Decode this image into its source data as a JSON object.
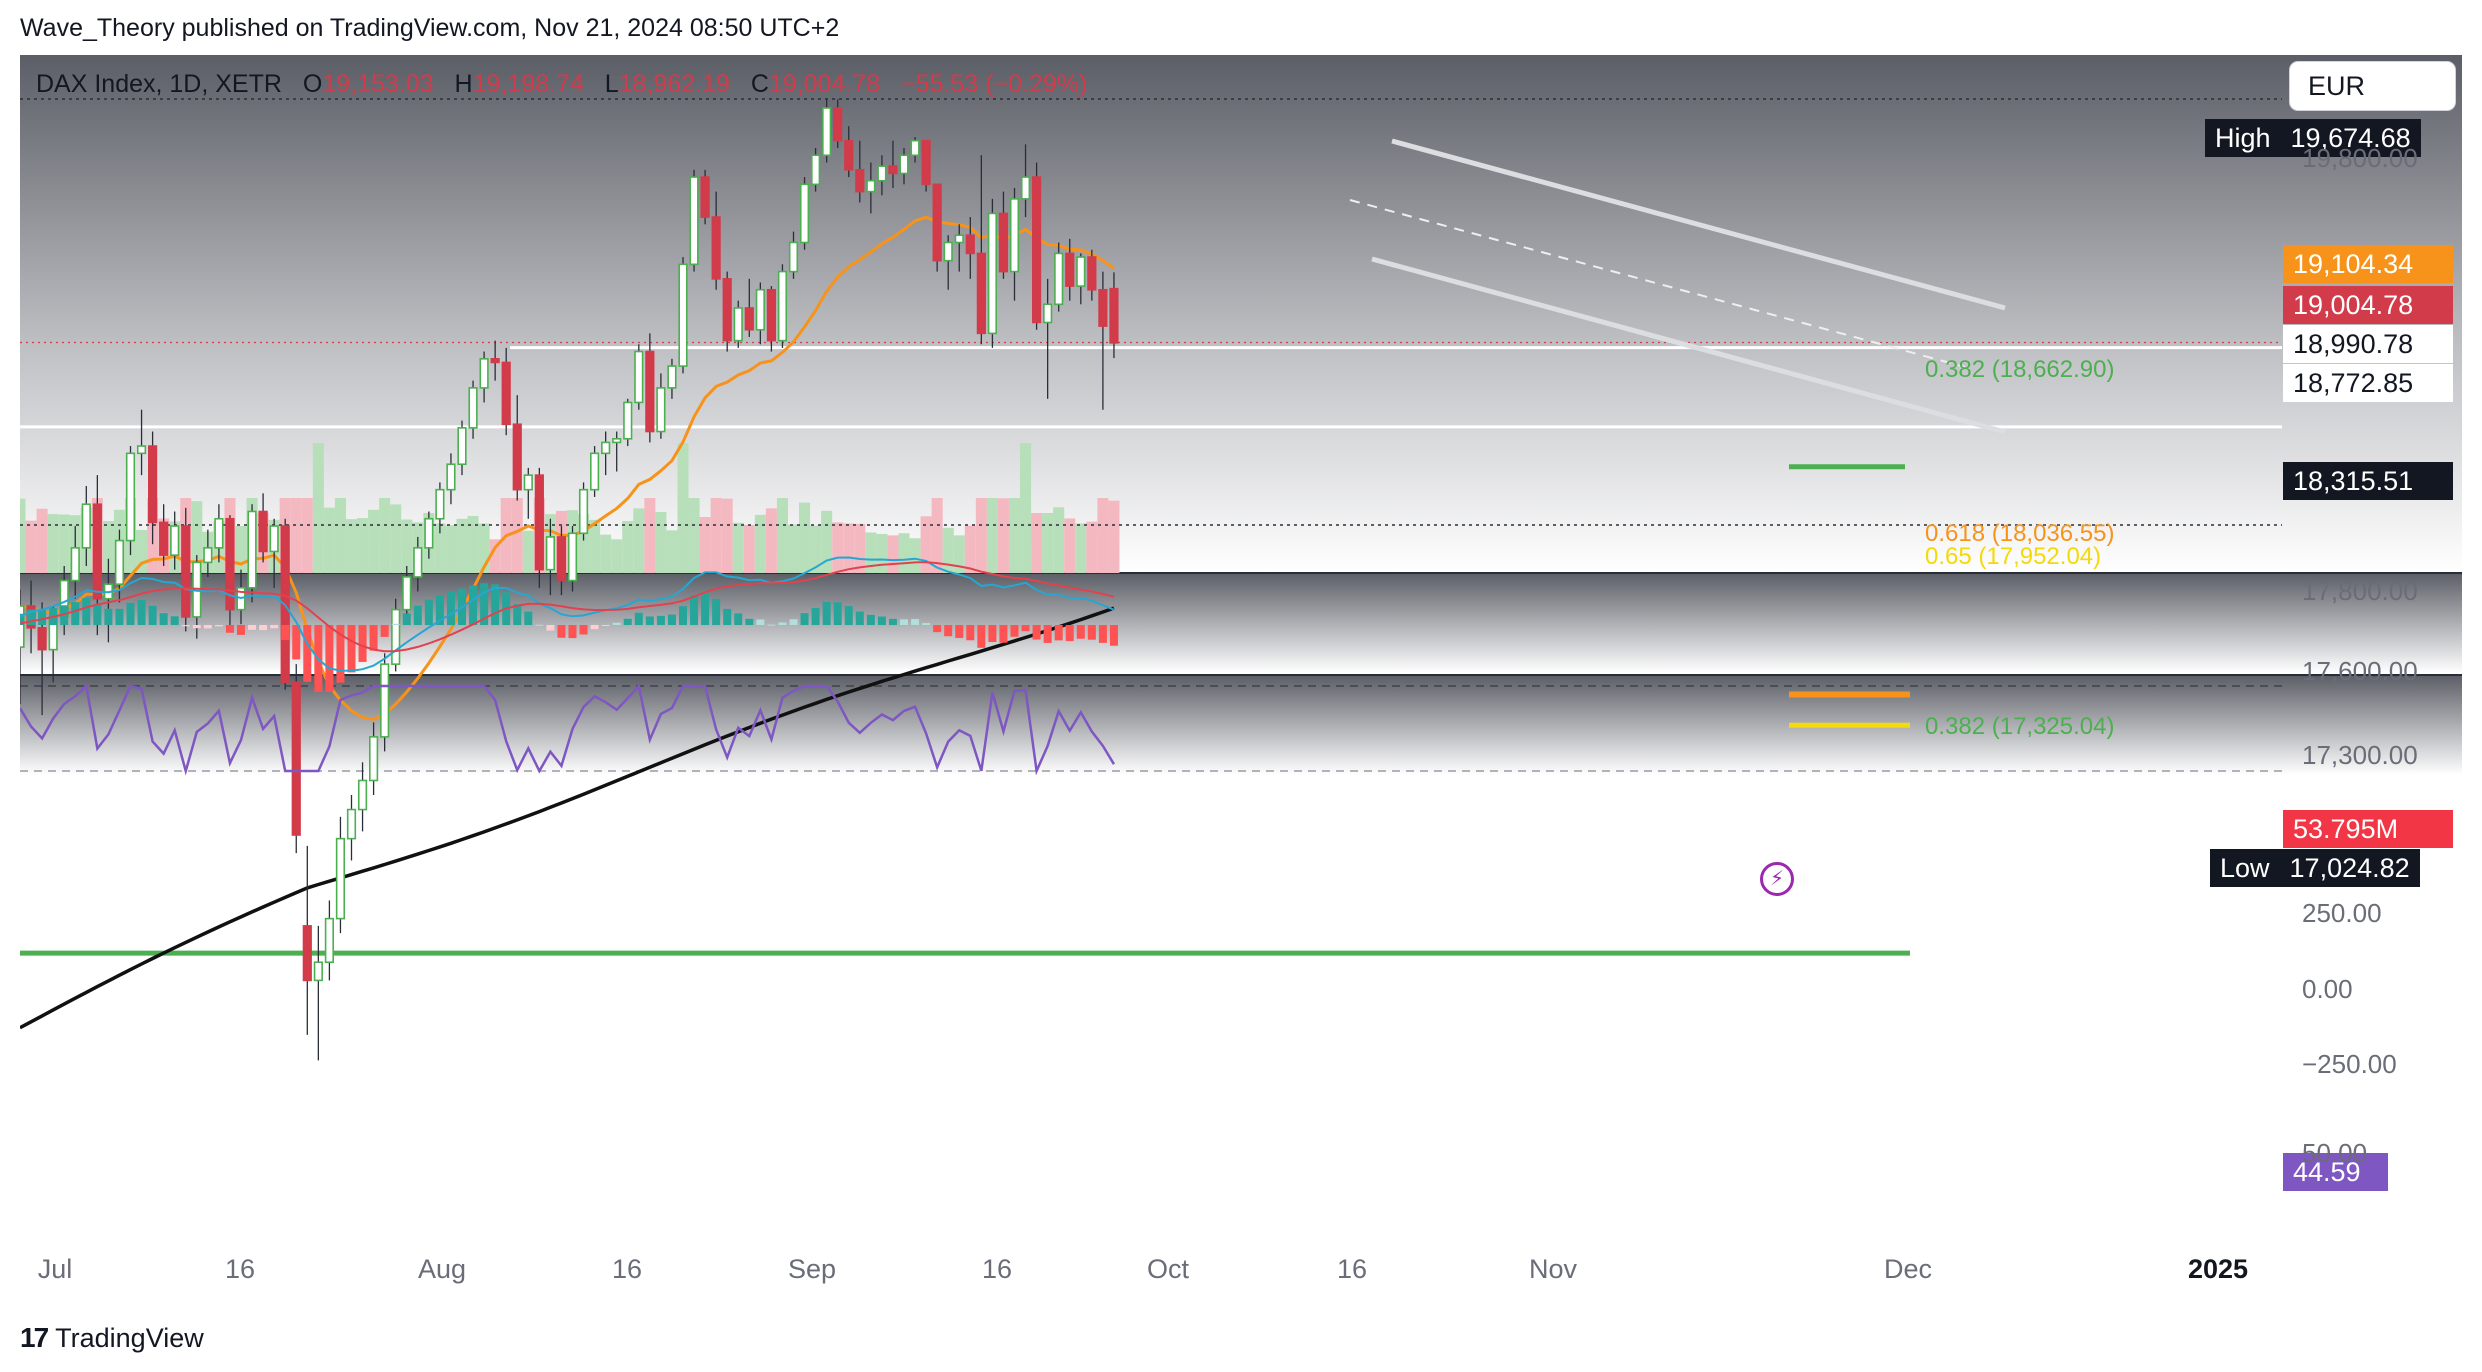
{
  "header": {
    "credit": "Wave_Theory published on TradingView.com, Nov 21, 2024 08:50 UTC+2",
    "currency": "EUR"
  },
  "legend": {
    "symbol": "DAX Index, 1D, XETR",
    "open_label": "O",
    "open": "19,153.03",
    "high_label": "H",
    "high": "19,198.74",
    "low_label": "L",
    "low": "18,962.19",
    "close_label": "C",
    "close": "19,004.78",
    "change": "−55.53 (−0.29%)"
  },
  "price_tags": {
    "high_label": "High",
    "high_value": "19,674.68",
    "ema_value": "19,104.34",
    "last_value": "19,004.78",
    "support1": "18,990.78",
    "support2": "18,772.85",
    "ema200_value": "18,315.51",
    "volume_value": "53.795M",
    "low_label": "Low",
    "low_value": "17,024.82"
  },
  "colors": {
    "up": "#4caf50",
    "down": "#d23b4a",
    "ema50": "#f7931a",
    "ema200": "#111111",
    "fib_green": "#4caf50",
    "fib_orange": "#f7931a",
    "fib_yellow": "#f5d90a",
    "macd": "#26a6d1",
    "signal": "#e0424f",
    "rsi": "#7e57c2"
  },
  "chart_data": {
    "type": "candlestick",
    "title": "DAX Index, 1D, XETR",
    "y_axis_ticks": [
      "19,800.00",
      "17,800.00",
      "17,600.00",
      "17,300.00"
    ],
    "x_axis_ticks": [
      "Jul",
      "16",
      "Aug",
      "16",
      "Sep",
      "16",
      "Oct",
      "16",
      "Nov",
      "Dec",
      "2025"
    ],
    "ylim": [
      17000,
      19700
    ],
    "high": 19674.68,
    "low": 17024.82,
    "last": 19004.78,
    "ema_short": 19104.34,
    "ema_long": 18315.51,
    "horizontal_levels": [
      18990.78,
      18772.85
    ],
    "fib_levels": [
      {
        "label": "0.382 (18,662.90)",
        "value": 18662.9,
        "color": "green"
      },
      {
        "label": "0.618 (18,036.55)",
        "value": 18036.55,
        "color": "orange"
      },
      {
        "label": "0.65 (17,952.04)",
        "value": 17952.04,
        "color": "yellow"
      },
      {
        "label": "0.382 (17,325.04)",
        "value": 17325.04,
        "color": "green"
      }
    ],
    "candles": [
      [
        18167,
        18325,
        18010,
        18280
      ],
      [
        18280,
        18350,
        18150,
        18220
      ],
      [
        18220,
        18290,
        17980,
        18160
      ],
      [
        18160,
        18280,
        18070,
        18250
      ],
      [
        18250,
        18390,
        18200,
        18350
      ],
      [
        18350,
        18500,
        18300,
        18440
      ],
      [
        18440,
        18610,
        18390,
        18560
      ],
      [
        18560,
        18640,
        18200,
        18300
      ],
      [
        18300,
        18410,
        18180,
        18340
      ],
      [
        18340,
        18490,
        18290,
        18460
      ],
      [
        18460,
        18720,
        18420,
        18700
      ],
      [
        18700,
        18820,
        18640,
        18720
      ],
      [
        18720,
        18760,
        18450,
        18510
      ],
      [
        18510,
        18560,
        18390,
        18420
      ],
      [
        18420,
        18540,
        18380,
        18500
      ],
      [
        18500,
        18550,
        18210,
        18250
      ],
      [
        18250,
        18420,
        18190,
        18400
      ],
      [
        18400,
        18490,
        18360,
        18440
      ],
      [
        18440,
        18560,
        18400,
        18520
      ],
      [
        18520,
        18530,
        18220,
        18270
      ],
      [
        18270,
        18380,
        18230,
        18330
      ],
      [
        18330,
        18560,
        18290,
        18540
      ],
      [
        18540,
        18590,
        18400,
        18430
      ],
      [
        18430,
        18520,
        18330,
        18500
      ],
      [
        18500,
        18520,
        18050,
        18070
      ],
      [
        18070,
        18120,
        17600,
        17650
      ],
      [
        17400,
        17620,
        17100,
        17250
      ],
      [
        17250,
        17400,
        17030,
        17300
      ],
      [
        17300,
        17470,
        17250,
        17420
      ],
      [
        17420,
        17700,
        17380,
        17640
      ],
      [
        17640,
        17760,
        17580,
        17720
      ],
      [
        17720,
        17850,
        17660,
        17800
      ],
      [
        17800,
        17960,
        17760,
        17920
      ],
      [
        17920,
        18150,
        17880,
        18120
      ],
      [
        18120,
        18300,
        18100,
        18270
      ],
      [
        18270,
        18390,
        18230,
        18360
      ],
      [
        18360,
        18470,
        18320,
        18440
      ],
      [
        18440,
        18540,
        18410,
        18520
      ],
      [
        18520,
        18620,
        18480,
        18600
      ],
      [
        18600,
        18700,
        18560,
        18670
      ],
      [
        18670,
        18790,
        18640,
        18770
      ],
      [
        18770,
        18900,
        18740,
        18880
      ],
      [
        18880,
        18980,
        18840,
        18960
      ],
      [
        18960,
        19010,
        18900,
        18950
      ],
      [
        18950,
        18990,
        18750,
        18780
      ],
      [
        18780,
        18860,
        18570,
        18600
      ],
      [
        18600,
        18660,
        18520,
        18640
      ],
      [
        18640,
        18660,
        18330,
        18380
      ],
      [
        18380,
        18520,
        18310,
        18470
      ],
      [
        18470,
        18500,
        18310,
        18350
      ],
      [
        18350,
        18500,
        18320,
        18480
      ],
      [
        18480,
        18620,
        18460,
        18600
      ],
      [
        18600,
        18720,
        18580,
        18700
      ],
      [
        18700,
        18760,
        18640,
        18730
      ],
      [
        18730,
        18760,
        18650,
        18740
      ],
      [
        18740,
        18850,
        18720,
        18840
      ],
      [
        18840,
        19000,
        18820,
        18980
      ],
      [
        18980,
        19030,
        18730,
        18760
      ],
      [
        18760,
        18920,
        18740,
        18880
      ],
      [
        18880,
        18960,
        18850,
        18940
      ],
      [
        18940,
        19240,
        18920,
        19220
      ],
      [
        19220,
        19480,
        19200,
        19460
      ],
      [
        19460,
        19480,
        19330,
        19350
      ],
      [
        19350,
        19420,
        19150,
        19180
      ],
      [
        19180,
        19200,
        18980,
        19010
      ],
      [
        19010,
        19120,
        18990,
        19100
      ],
      [
        19100,
        19180,
        19020,
        19040
      ],
      [
        19040,
        19170,
        19000,
        19150
      ],
      [
        19150,
        19160,
        18980,
        19010
      ],
      [
        19010,
        19220,
        18990,
        19200
      ],
      [
        19200,
        19310,
        19180,
        19280
      ],
      [
        19280,
        19460,
        19260,
        19440
      ],
      [
        19440,
        19540,
        19420,
        19520
      ],
      [
        19520,
        19674,
        19500,
        19650
      ],
      [
        19650,
        19674,
        19540,
        19560
      ],
      [
        19560,
        19600,
        19460,
        19480
      ],
      [
        19480,
        19560,
        19390,
        19420
      ],
      [
        19420,
        19500,
        19360,
        19450
      ],
      [
        19450,
        19520,
        19410,
        19490
      ],
      [
        19490,
        19560,
        19430,
        19470
      ],
      [
        19470,
        19540,
        19440,
        19520
      ],
      [
        19520,
        19570,
        19500,
        19560
      ],
      [
        19560,
        19560,
        19420,
        19440
      ],
      [
        19440,
        19440,
        19200,
        19230
      ],
      [
        19230,
        19300,
        19150,
        19280
      ],
      [
        19280,
        19330,
        19200,
        19300
      ],
      [
        19300,
        19350,
        19180,
        19250
      ],
      [
        19250,
        19520,
        19000,
        19030
      ],
      [
        19030,
        19400,
        18990,
        19360
      ],
      [
        19360,
        19420,
        19180,
        19200
      ],
      [
        19200,
        19430,
        19120,
        19400
      ],
      [
        19400,
        19550,
        19350,
        19460
      ],
      [
        19460,
        19500,
        19040,
        19060
      ],
      [
        19060,
        19180,
        18850,
        19110
      ],
      [
        19110,
        19280,
        19090,
        19250
      ],
      [
        19250,
        19290,
        19120,
        19160
      ],
      [
        19160,
        19250,
        19110,
        19240
      ],
      [
        19240,
        19260,
        19120,
        19150
      ],
      [
        19150,
        19200,
        18820,
        19050
      ],
      [
        19153,
        19198,
        18962,
        19004
      ]
    ],
    "volume_last": "53.795M",
    "macd_ticks": [
      "250.00",
      "0.00",
      "−250.00"
    ],
    "rsi_ticks": [
      "50.00"
    ],
    "rsi_last": 44.59
  },
  "footer": {
    "brand": "TradingView"
  }
}
